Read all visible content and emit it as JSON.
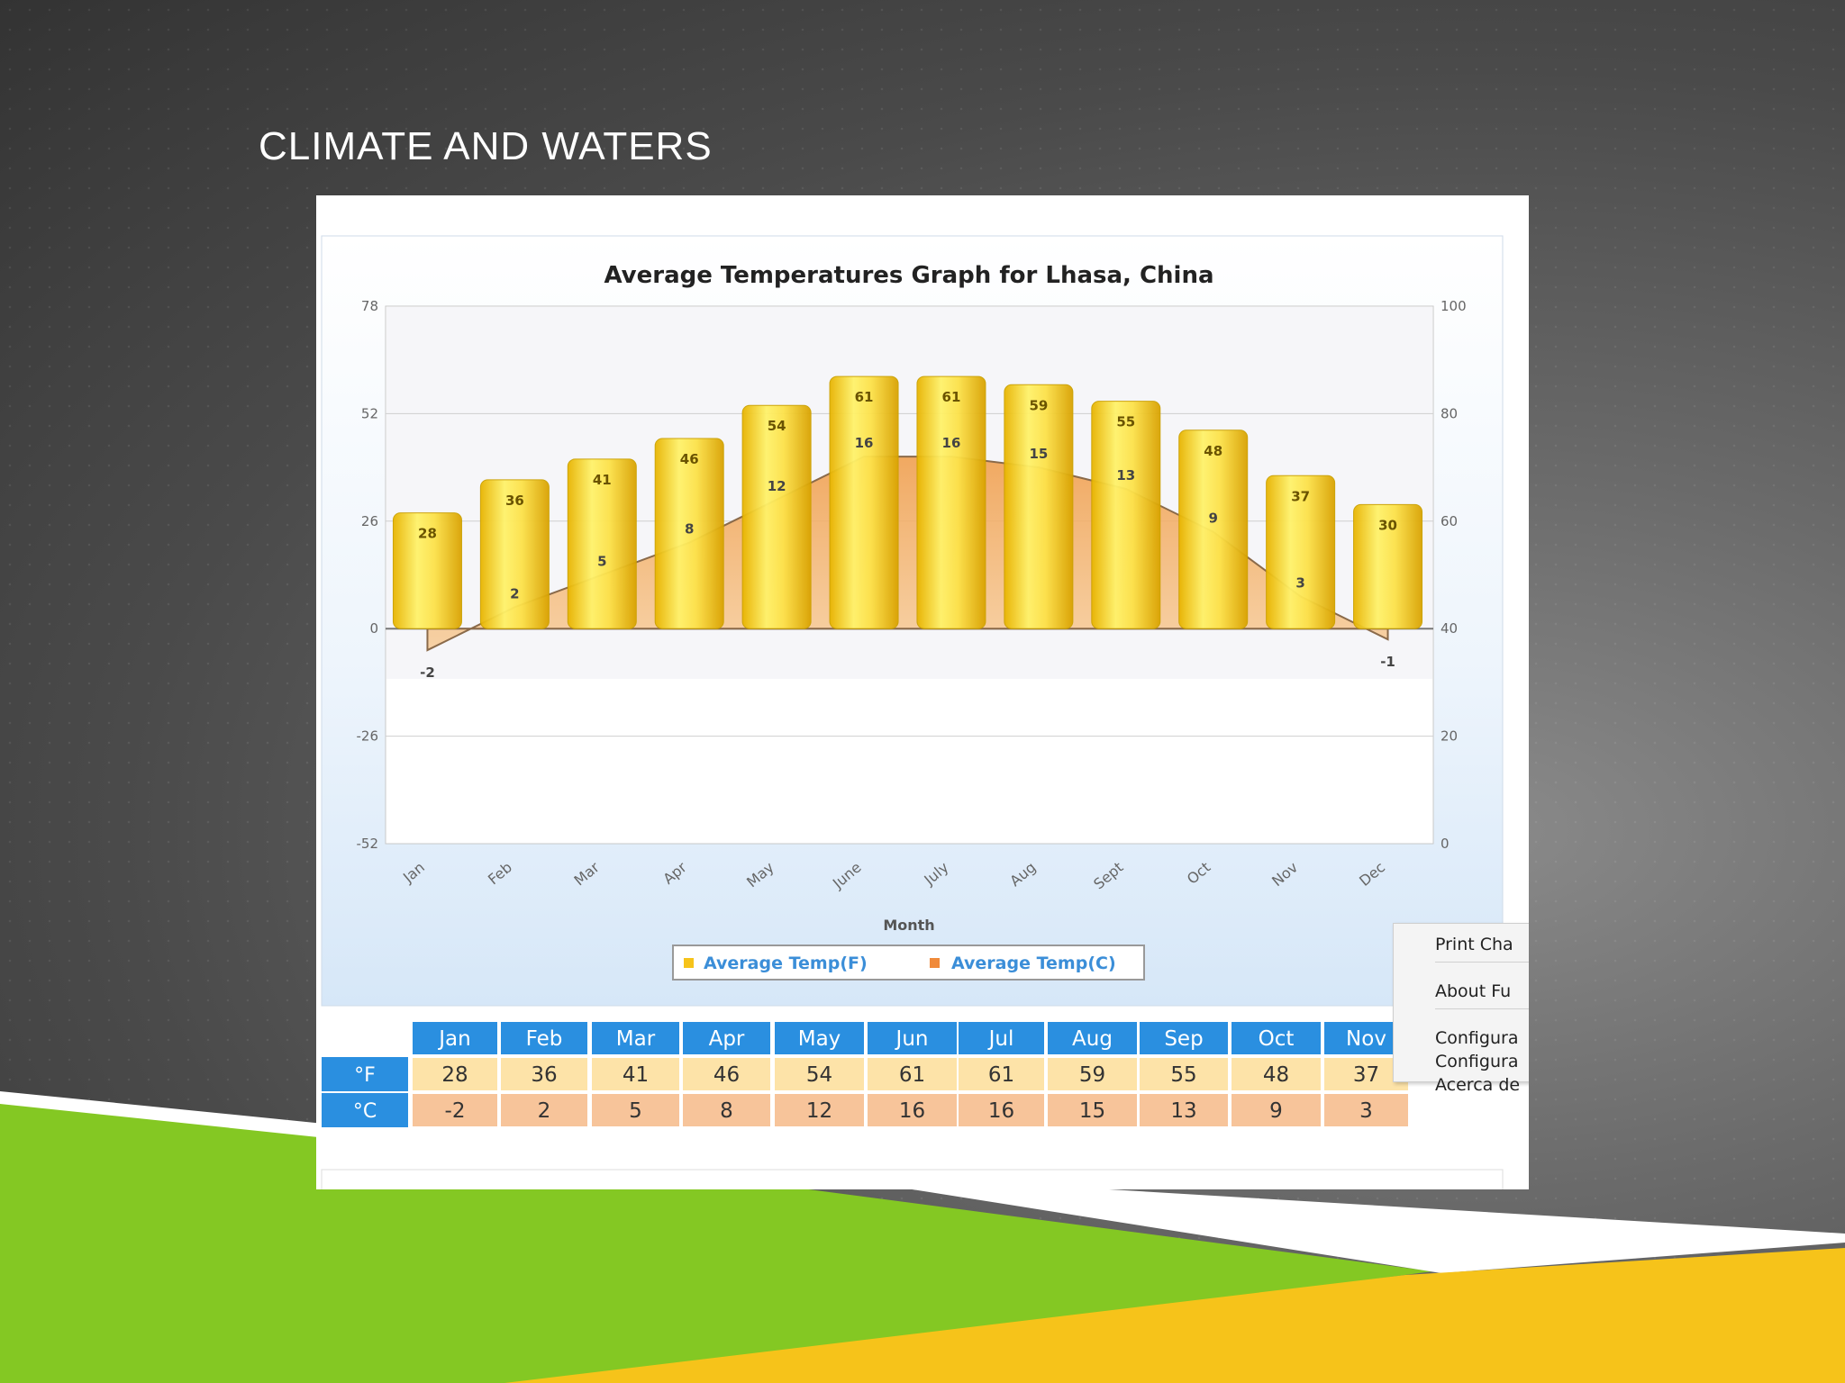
{
  "slide": {
    "title": "CLIMATE AND WATERS"
  },
  "colors": {
    "green": "#84c823",
    "yellow": "#f6c31a",
    "header_blue": "#2a8fe0",
    "f_row": "#fde3a8",
    "c_row": "#f7c49a"
  },
  "chart_data": {
    "type": "bar",
    "title": "Average Temperatures Graph for Lhasa, China",
    "xlabel": "Month",
    "categories": [
      "Jan",
      "Feb",
      "Mar",
      "Apr",
      "May",
      "June",
      "July",
      "Aug",
      "Sept",
      "Oct",
      "Nov",
      "Dec"
    ],
    "series": [
      {
        "name": "Average Temp(F)",
        "type": "bar",
        "axis": "left",
        "values": [
          28,
          36,
          41,
          46,
          54,
          61,
          61,
          59,
          55,
          48,
          37,
          30
        ]
      },
      {
        "name": "Average Temp(C)",
        "type": "area",
        "axis": "right",
        "values": [
          -2,
          2,
          5,
          8,
          12,
          16,
          16,
          15,
          13,
          9,
          3,
          -1
        ]
      }
    ],
    "left_axis": {
      "ticks": [
        "78",
        "52",
        "26",
        "0",
        "-26",
        "-52"
      ],
      "range": [
        -52,
        78
      ]
    },
    "right_axis": {
      "ticks": [
        "100",
        "80",
        "60",
        "40",
        "20",
        "0"
      ],
      "range": [
        0,
        100
      ]
    },
    "legend": [
      "Average Temp(F)",
      "Average Temp(C)"
    ]
  },
  "table": {
    "headers": [
      "Jan",
      "Feb",
      "Mar",
      "Apr",
      "May",
      "Jun",
      "Jul",
      "Aug",
      "Sep",
      "Oct",
      "Nov"
    ],
    "f_label": "°F",
    "c_label": "°C",
    "f_values": [
      "28",
      "36",
      "41",
      "46",
      "54",
      "61",
      "61",
      "59",
      "55",
      "48",
      "37"
    ],
    "c_values": [
      "-2",
      "2",
      "5",
      "8",
      "12",
      "16",
      "16",
      "15",
      "13",
      "9",
      "3"
    ]
  },
  "context_menu": [
    "Print Cha",
    "About Fu",
    "Configura",
    "Configura",
    "Acerca de"
  ]
}
